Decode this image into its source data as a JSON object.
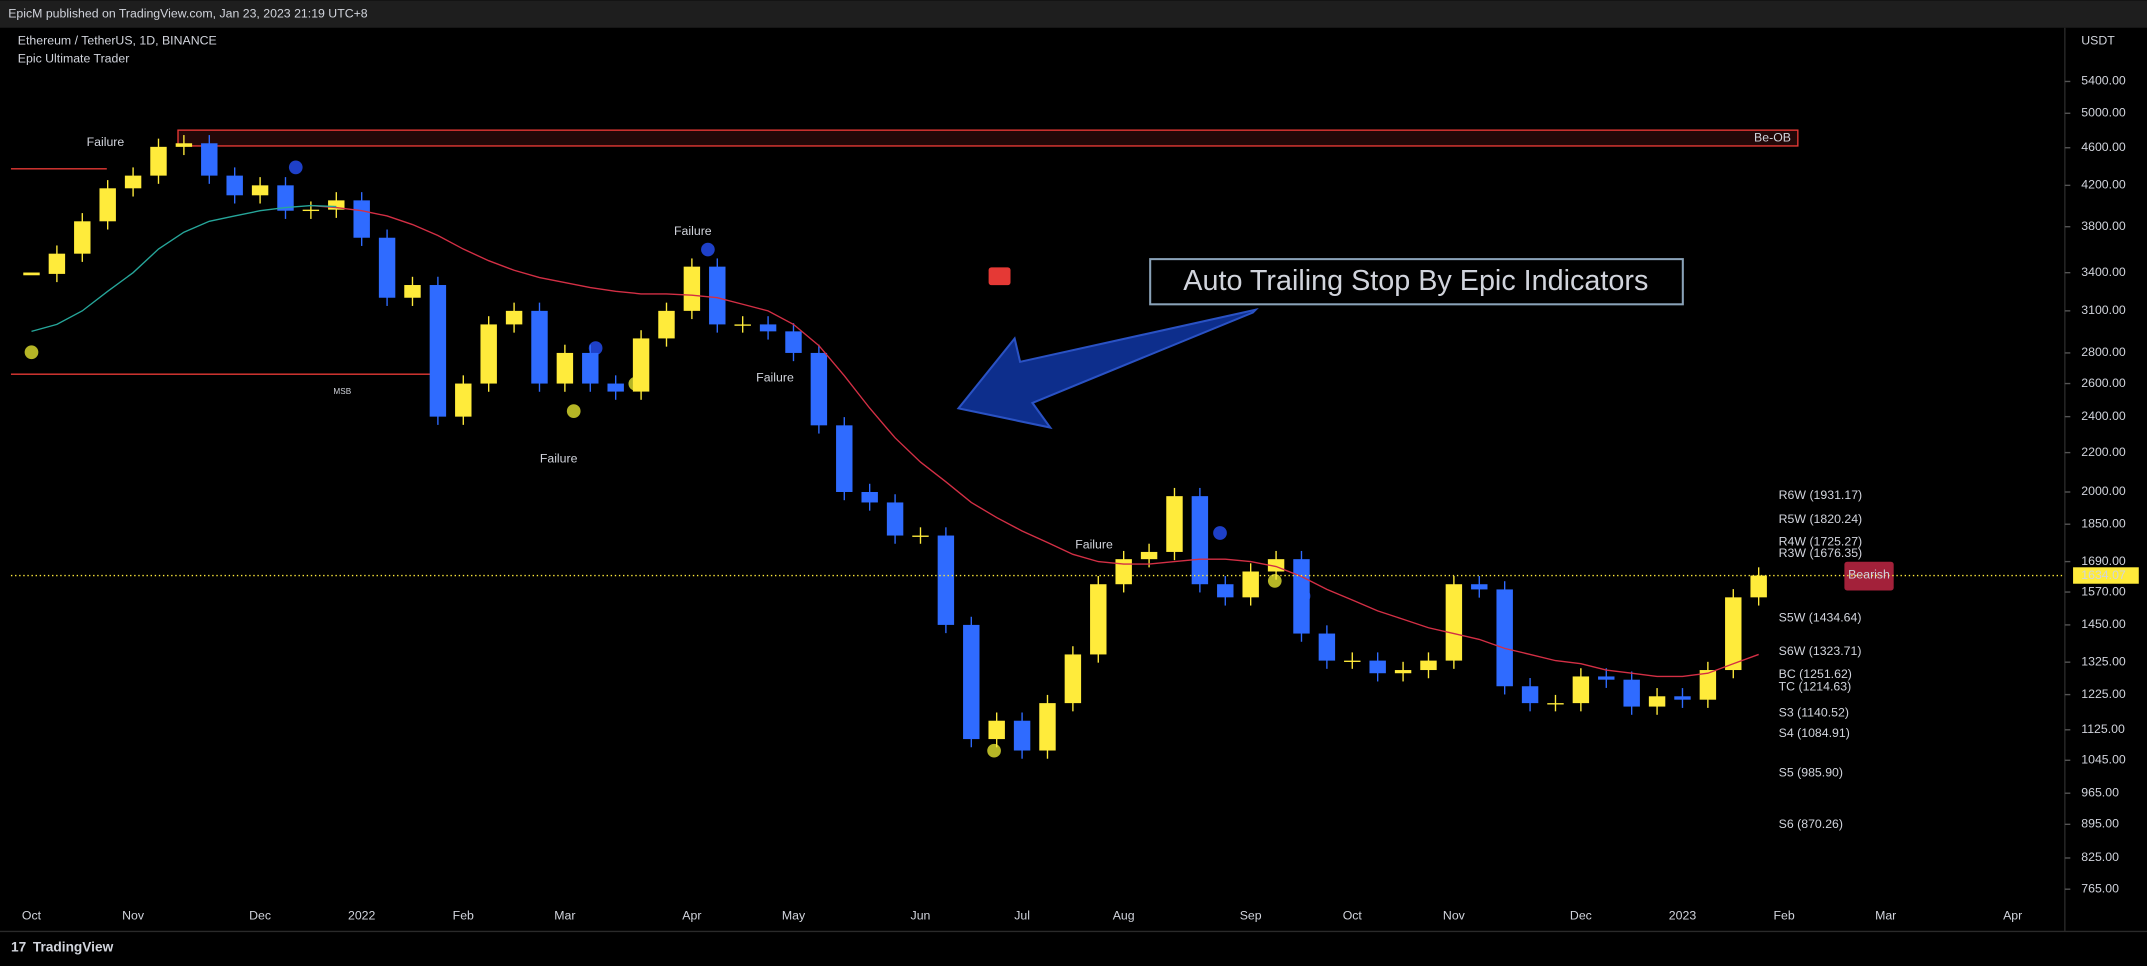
{
  "header": {
    "published": "EpicM published on TradingView.com, Jan 23, 2023 21:19 UTC+8",
    "symbol": "Ethereum / TetherUS, 1D, BINANCE",
    "indicator": "Epic Ultimate Trader",
    "currency": "USDT"
  },
  "footer": {
    "brand": "TradingView"
  },
  "chart_data": {
    "type": "candlestick",
    "log_scale": true,
    "categories": [
      "Oct",
      null,
      null,
      null,
      "Nov",
      null,
      null,
      null,
      null,
      "Dec",
      null,
      null,
      null,
      "2022",
      null,
      null,
      null,
      "Feb",
      null,
      null,
      null,
      "Mar",
      null,
      null,
      null,
      null,
      "Apr",
      null,
      null,
      null,
      "May",
      null,
      null,
      null,
      null,
      "Jun",
      null,
      null,
      null,
      "Jul",
      null,
      null,
      null,
      "Aug",
      null,
      null,
      null,
      null,
      "Sep",
      null,
      null,
      null,
      "Oct",
      null,
      null,
      null,
      "Nov",
      null,
      null,
      null,
      null,
      "Dec",
      null,
      null,
      null,
      "2023",
      null,
      null,
      null,
      "Feb",
      null,
      null,
      null,
      "Mar",
      null,
      null,
      null,
      null,
      "Apr"
    ],
    "series": [
      {
        "name": "Price",
        "up_color": "#ffeb3b",
        "down_color": "#2f6bff",
        "values": [
          3390,
          3560,
          3850,
          4170,
          4300,
          4610,
          4650,
          4300,
          4100,
          4200,
          3950,
          3960,
          4050,
          3700,
          3200,
          3300,
          2400,
          2600,
          3000,
          3100,
          2600,
          2800,
          2600,
          2550,
          2900,
          3100,
          3450,
          3000,
          3000,
          2950,
          2800,
          2350,
          2000,
          1950,
          1800,
          1800,
          1450,
          1100,
          1150,
          1070,
          1200,
          1350,
          1600,
          1700,
          1730,
          1980,
          1600,
          1550,
          1650,
          1700,
          1420,
          1330,
          1330,
          1290,
          1300,
          1330,
          1600,
          1580,
          1250,
          1200,
          1200,
          1280,
          1270,
          1190,
          1220,
          1210,
          1300,
          1550,
          1634,
          null,
          null,
          null,
          null,
          null,
          null,
          null,
          null,
          null,
          null
        ]
      },
      {
        "name": "Trailing Stop",
        "color": "#d32f45",
        "values": [
          null,
          null,
          null,
          null,
          null,
          null,
          null,
          null,
          null,
          null,
          null,
          4000,
          3980,
          3950,
          3900,
          3820,
          3720,
          3600,
          3500,
          3420,
          3360,
          3320,
          3280,
          3250,
          3230,
          3230,
          3220,
          3200,
          3150,
          3100,
          3000,
          2850,
          2650,
          2450,
          2280,
          2150,
          2050,
          1950,
          1880,
          1820,
          1770,
          1720,
          1690,
          1680,
          1680,
          1690,
          1700,
          1700,
          1690,
          1670,
          1630,
          1580,
          1540,
          1500,
          1470,
          1440,
          1420,
          1400,
          1370,
          1350,
          1330,
          1320,
          1300,
          1290,
          1280,
          1280,
          1290,
          1320,
          1350,
          null,
          null,
          null,
          null,
          null,
          null,
          null,
          null,
          null,
          null
        ]
      },
      {
        "name": "Trend Line",
        "color": "#26a69a",
        "values": [
          2950,
          3000,
          3100,
          3250,
          3400,
          3600,
          3750,
          3850,
          3900,
          3950,
          3980,
          4000,
          3990,
          null,
          null,
          null,
          null,
          null,
          null,
          null,
          null,
          null,
          null,
          null,
          null,
          null,
          null,
          null,
          null,
          null,
          null,
          null,
          null,
          null,
          null,
          null,
          null,
          null,
          null,
          null,
          null,
          null,
          null,
          null,
          null,
          null,
          null,
          null,
          null,
          null,
          null,
          null,
          null,
          null,
          null,
          null,
          null,
          null,
          null,
          null,
          null,
          null,
          null,
          null,
          null,
          null,
          null,
          null,
          null,
          null,
          null,
          null,
          null,
          null,
          null,
          null,
          null,
          null,
          null
        ]
      }
    ],
    "ylim": [
      738,
      6150
    ],
    "yticks": [
      {
        "value": 5400,
        "label": "5400.00"
      },
      {
        "value": 5000,
        "label": "5000.00"
      },
      {
        "value": 4600,
        "label": "4600.00"
      },
      {
        "value": 4200,
        "label": "4200.00"
      },
      {
        "value": 3800,
        "label": "3800.00"
      },
      {
        "value": 3400,
        "label": "3400.00"
      },
      {
        "value": 3100,
        "label": "3100.00"
      },
      {
        "value": 2800,
        "label": "2800.00"
      },
      {
        "value": 2600,
        "label": "2600.00"
      },
      {
        "value": 2400,
        "label": "2400.00"
      },
      {
        "value": 2200,
        "label": "2200.00"
      },
      {
        "value": 2000,
        "label": "2000.00"
      },
      {
        "value": 1850,
        "label": "1850.00"
      },
      {
        "value": 1690,
        "label": "1690.00"
      },
      {
        "value": 1570,
        "label": "1570.00"
      },
      {
        "value": 1450,
        "label": "1450.00"
      },
      {
        "value": 1325,
        "label": "1325.00"
      },
      {
        "value": 1225,
        "label": "1225.00"
      },
      {
        "value": 1125,
        "label": "1125.00"
      },
      {
        "value": 1045,
        "label": "1045.00"
      },
      {
        "value": 965,
        "label": "965.00"
      },
      {
        "value": 895,
        "label": "895.00"
      },
      {
        "value": 825,
        "label": "825.00"
      },
      {
        "value": 765,
        "label": "765.00"
      }
    ],
    "current_price": 1634.07,
    "zone": {
      "label": "Be-OB",
      "low": 4620,
      "high": 4800
    },
    "levels": [
      {
        "label": "R6W (1931.17)",
        "value": 1931.17,
        "color": "#e0404f"
      },
      {
        "label": "R5W (1820.24)",
        "value": 1820.24,
        "color": "#e0404f"
      },
      {
        "label": "R4W (1725.27)",
        "value": 1725.27,
        "color": "#e0404f"
      },
      {
        "label": "R3W (1676.35)",
        "value": 1676.35,
        "color": "#e0404f"
      },
      {
        "label": "S5W (1434.64)",
        "value": 1434.64,
        "color": "#26a69a"
      },
      {
        "label": "S6W (1323.71)",
        "value": 1323.71,
        "color": "#26a69a"
      },
      {
        "label": "BC (1251.62)",
        "value": 1251.62,
        "color": "#ffffff"
      },
      {
        "label": "TC (1214.63)",
        "value": 1214.63,
        "color": "#e0404f"
      },
      {
        "label": "S3 (1140.52)",
        "value": 1140.52,
        "color": "#26a69a"
      },
      {
        "label": "S4 (1084.91)",
        "value": 1084.91,
        "color": "#26a69a"
      },
      {
        "label": "S5 (985.90)",
        "value": 985.9,
        "color": "#26a69a"
      },
      {
        "label": "S6 (870.26)",
        "value": 870.26,
        "color": "#26a69a"
      }
    ],
    "annotations": [
      "Failure",
      "Failure",
      "Failure",
      "Failure",
      "Failure",
      "Auto Trailing Stop By Epic Indicators",
      "Bearish",
      "MSB"
    ]
  }
}
